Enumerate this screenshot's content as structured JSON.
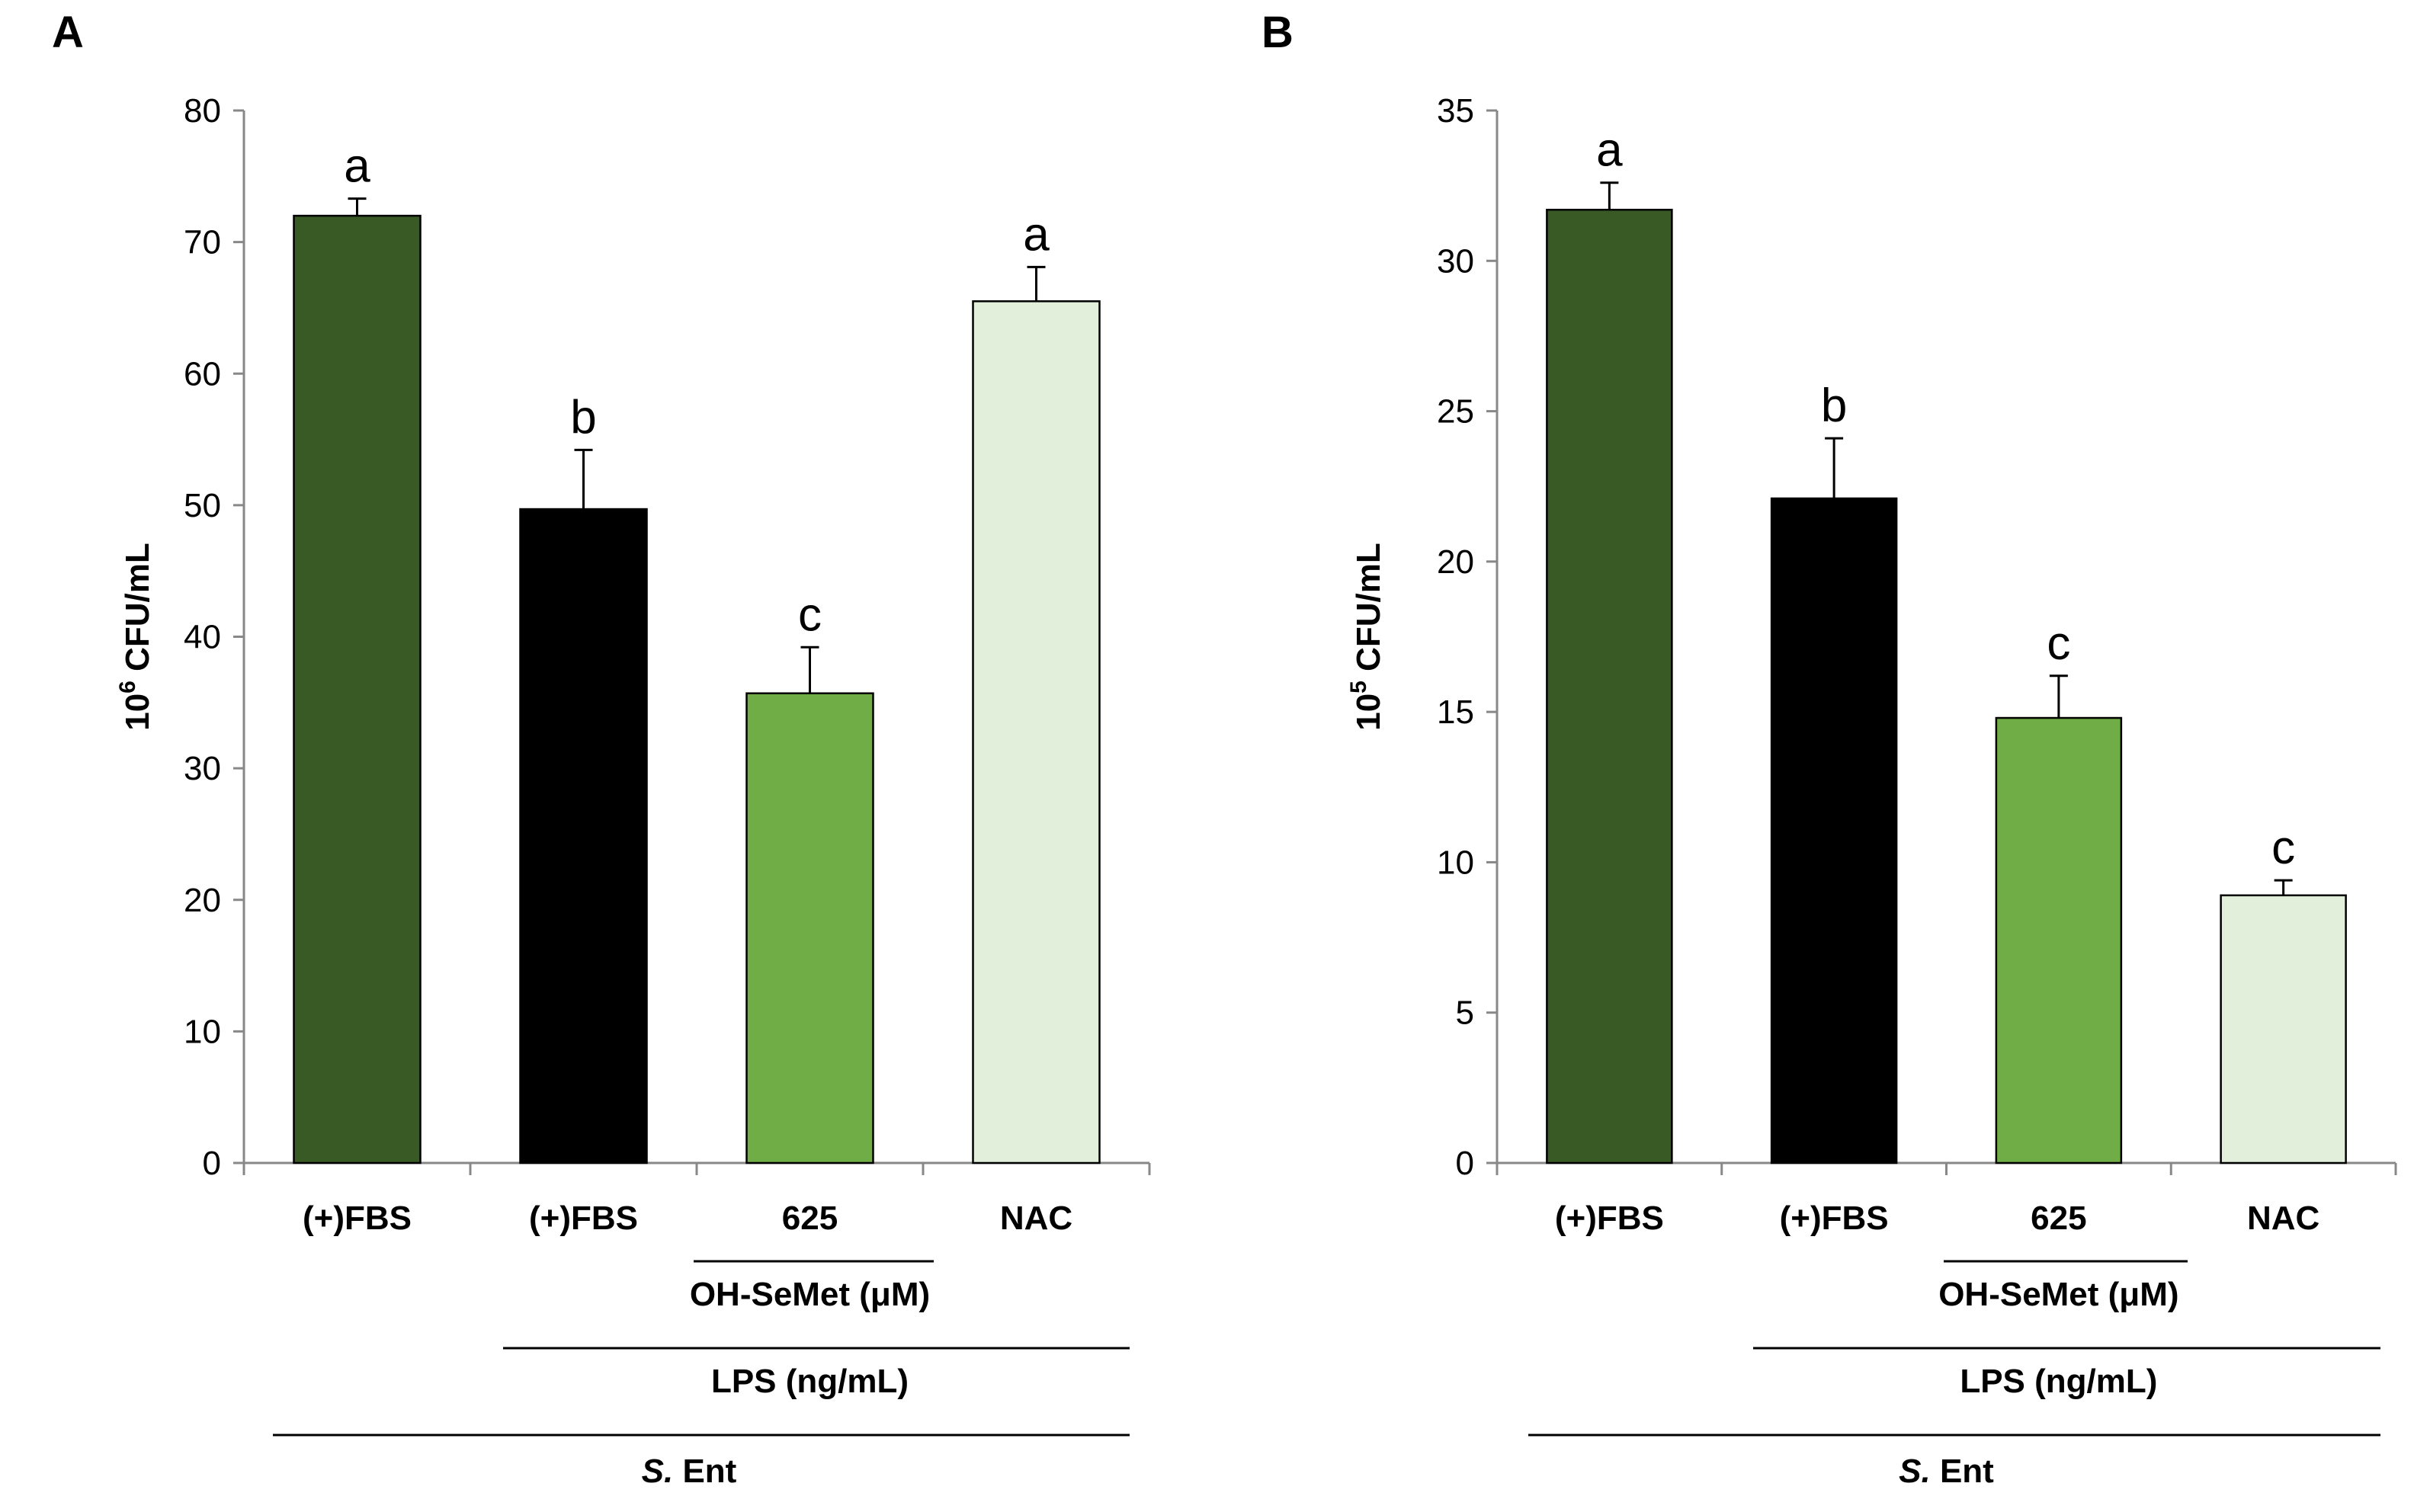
{
  "chart_data": [
    {
      "type": "bar",
      "panel": "A",
      "ylabel_base": "10",
      "ylabel_exp": "6",
      "ylabel_unit": "CFU/mL",
      "ylim": [
        0,
        80
      ],
      "yticks": [
        0,
        10,
        20,
        30,
        40,
        50,
        60,
        70,
        80
      ],
      "categories": [
        "(+)FBS",
        "(+)FBS",
        "625",
        "NAC"
      ],
      "values": [
        72,
        49.7,
        35.7,
        65.5
      ],
      "errors": [
        1.3,
        4.5,
        3.5,
        2.6
      ],
      "letters": [
        "a",
        "b",
        "c",
        "a"
      ],
      "colors": [
        "#3a5a25",
        "#000000",
        "#70ad47",
        "#e2efda"
      ],
      "groups": [
        {
          "label": "OH-SeMet (μM)",
          "span": [
            2,
            2
          ]
        },
        {
          "label": "LPS (ng/mL)",
          "span": [
            1,
            3
          ]
        },
        {
          "label_italic": "S.",
          "label_rest": " Ent",
          "span": [
            0,
            3
          ]
        }
      ]
    },
    {
      "type": "bar",
      "panel": "B",
      "ylabel_base": "10",
      "ylabel_exp": "5",
      "ylabel_unit": "CFU/mL",
      "ylim": [
        0,
        35
      ],
      "yticks": [
        0,
        5,
        10,
        15,
        20,
        25,
        30,
        35
      ],
      "categories": [
        "(+)FBS",
        "(+)FBS",
        "625",
        "NAC"
      ],
      "values": [
        31.7,
        22.1,
        14.8,
        8.9
      ],
      "errors": [
        0.9,
        2.0,
        1.4,
        0.5
      ],
      "letters": [
        "a",
        "b",
        "c",
        "c"
      ],
      "colors": [
        "#3a5a25",
        "#000000",
        "#70ad47",
        "#e2efda"
      ],
      "groups": [
        {
          "label": "OH-SeMet (μM)",
          "span": [
            2,
            2
          ]
        },
        {
          "label": "LPS (ng/mL)",
          "span": [
            1,
            3
          ]
        },
        {
          "label_italic": "S.",
          "label_rest": " Ent",
          "span": [
            0,
            3
          ]
        }
      ]
    }
  ]
}
